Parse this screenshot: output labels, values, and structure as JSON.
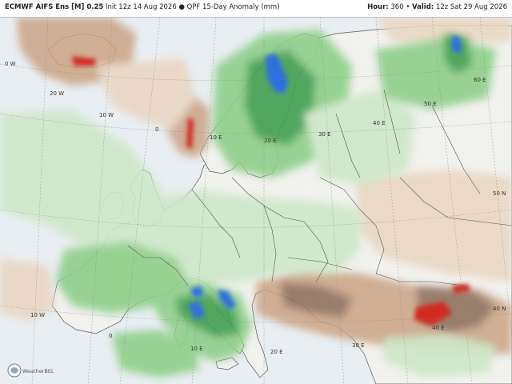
{
  "header": {
    "model": "ECMWF AIFS Ens [M] 0.25",
    "init_text": "Init 12z 14 Aug 2026",
    "separator": "●",
    "product": "QPF 15-Day Anomaly (mm)",
    "hour_label": "Hour:",
    "hour_value": "360",
    "valid_label": "Valid:",
    "valid_value": "12z Sat 29 Aug 2026"
  },
  "gridlines": {
    "labels": [
      {
        "text": "0 W"
      },
      {
        "text": "20 W"
      },
      {
        "text": "10 W"
      },
      {
        "text": "0"
      },
      {
        "text": "10 E"
      },
      {
        "text": "20 E"
      },
      {
        "text": "30 E"
      },
      {
        "text": "40 E"
      },
      {
        "text": "50 E"
      },
      {
        "text": "60 E"
      },
      {
        "text": "50 N"
      },
      {
        "text": "40 N"
      },
      {
        "text": "10 W"
      },
      {
        "text": "0"
      },
      {
        "text": "10 E"
      },
      {
        "text": "20 E"
      },
      {
        "text": "30 E"
      },
      {
        "text": "40 E"
      }
    ]
  },
  "colors": {
    "ocean": "#e9eef2",
    "land_neutral": "#f1f1ee",
    "green_light": "#cde8c8",
    "green_mid": "#8fcf8a",
    "green_dark": "#3f9f4f",
    "blue": "#2f6fe0",
    "brown_light": "#e9d5c0",
    "brown_mid": "#caa384",
    "brown_dark": "#8b6a56",
    "red": "#d22a20"
  },
  "logo": {
    "text": "WeatherBELL"
  }
}
